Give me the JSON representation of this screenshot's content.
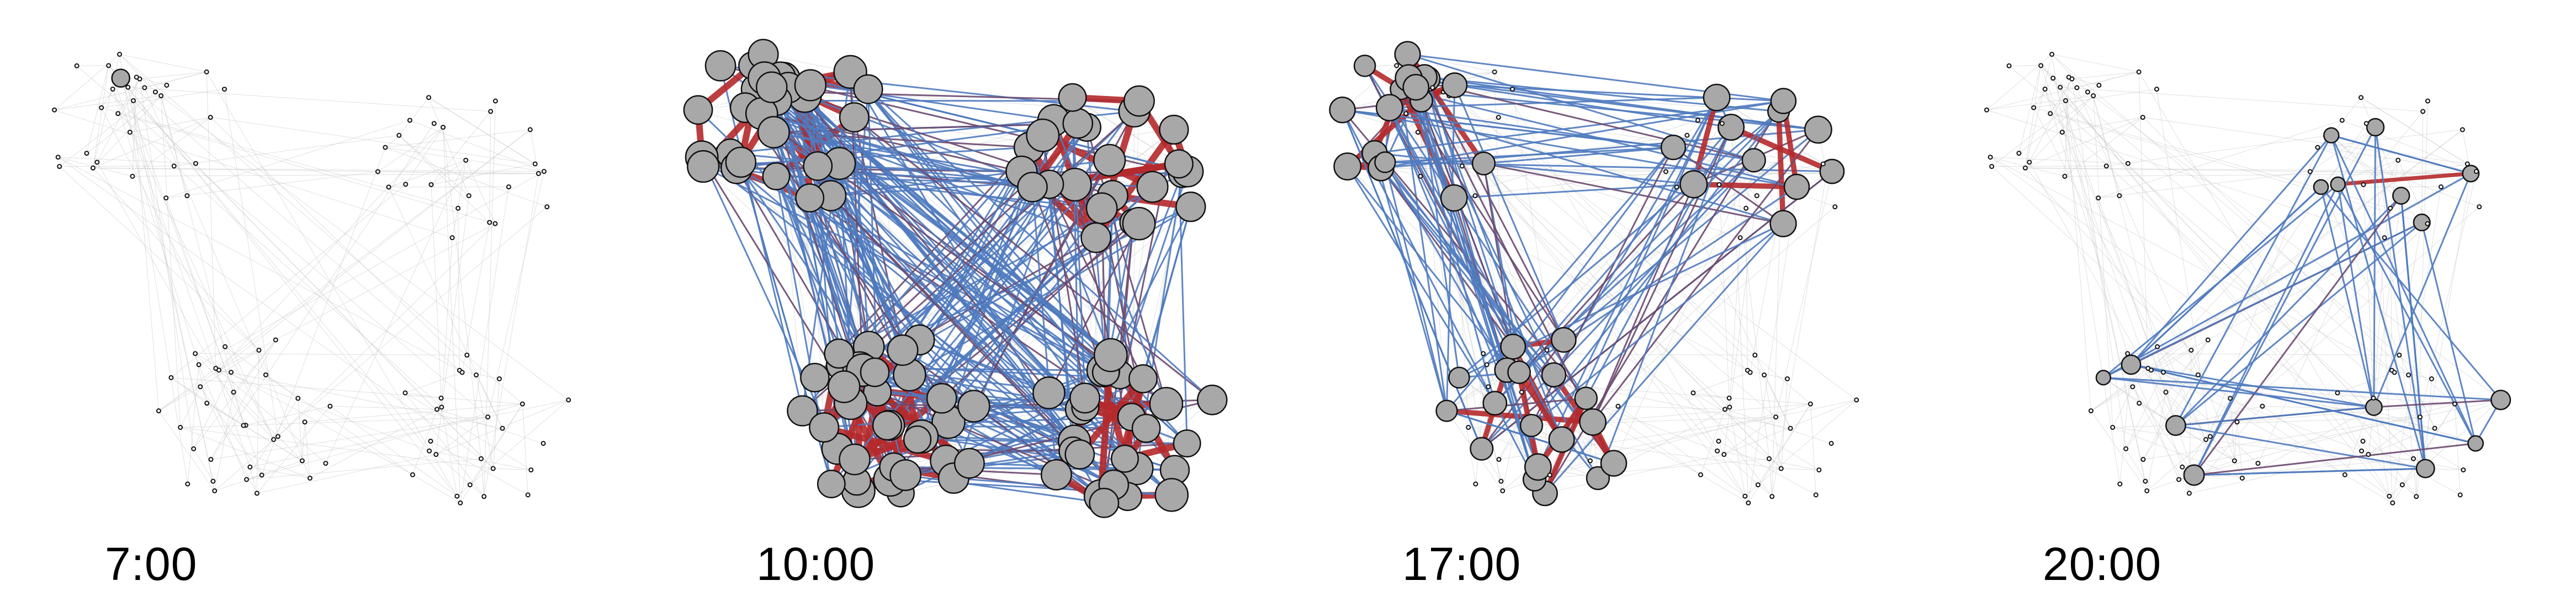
{
  "panels": [
    {
      "time": "7:00"
    },
    {
      "time": "10:00"
    },
    {
      "time": "17:00"
    },
    {
      "time": "20:00"
    }
  ],
  "colors": {
    "background": "#ffffff",
    "background_edge": "#c8c8c8",
    "edge_blue": "#4f7bbf",
    "edge_red": "#b52a2c",
    "edge_purple": "#6b4a6f",
    "node_fill": "#a8a8a8",
    "node_stroke": "#111111",
    "small_node_fill": "#ffffff"
  }
}
